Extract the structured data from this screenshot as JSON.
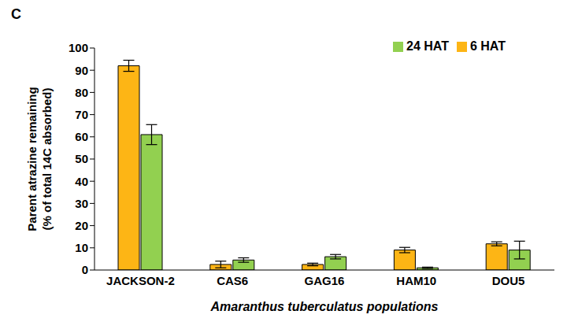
{
  "chart_data": {
    "type": "bar",
    "title": "C",
    "x_label": "Amaranthus tuberculatus populations",
    "y_label": [
      "Parent atrazine remaining",
      "(% of total 14C absorbed)"
    ],
    "categories": [
      "JACKSON-2",
      "CAS6",
      "GAG16",
      "HAM10",
      "DOU5"
    ],
    "series": [
      {
        "name": "6 HAT",
        "color": "#fdb515",
        "values": [
          92,
          2.5,
          2.5,
          9,
          11.8
        ],
        "errors": [
          2.5,
          1.5,
          0.6,
          1.2,
          0.9
        ]
      },
      {
        "name": "24 HAT",
        "color": "#92d050",
        "values": [
          61,
          4.5,
          6,
          1,
          9
        ],
        "errors": [
          4.5,
          1,
          1,
          0.3,
          4
        ]
      }
    ],
    "ylim": [
      0,
      100
    ],
    "yticks": [
      0,
      10,
      20,
      30,
      40,
      50,
      60,
      70,
      80,
      90,
      100
    ],
    "grid": false,
    "legend": "top-right"
  }
}
